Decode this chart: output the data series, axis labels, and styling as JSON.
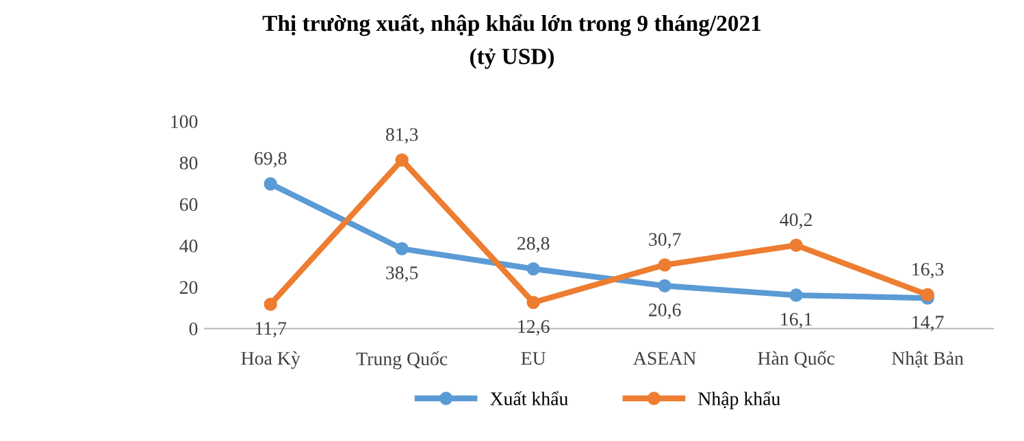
{
  "chart_data": {
    "type": "line",
    "title": "Thị trường xuất, nhập khẩu lớn trong 9 tháng/2021",
    "subtitle": "(tỷ USD)",
    "categories": [
      "Hoa Kỳ",
      "Trung Quốc",
      "EU",
      "ASEAN",
      "Hàn Quốc",
      "Nhật Bản"
    ],
    "series": [
      {
        "name": "Xuất khẩu",
        "color": "#5b9bd5",
        "values": [
          69.8,
          38.5,
          28.8,
          20.6,
          16.1,
          14.7
        ],
        "value_labels": [
          "69,8",
          "38,5",
          "28,8",
          "20,6",
          "16,1",
          "14,7"
        ]
      },
      {
        "name": "Nhập khẩu",
        "color": "#ed7d31",
        "values": [
          11.7,
          81.3,
          12.6,
          30.7,
          40.2,
          16.3
        ],
        "value_labels": [
          "11,7",
          "81,3",
          "12,6",
          "30,7",
          "40,2",
          "16,3"
        ]
      }
    ],
    "ylim": [
      0,
      100
    ],
    "yticks": [
      0,
      20,
      40,
      60,
      80,
      100
    ],
    "grid": false,
    "legend": "bottom",
    "marker": "circle",
    "line_style": "solid"
  }
}
